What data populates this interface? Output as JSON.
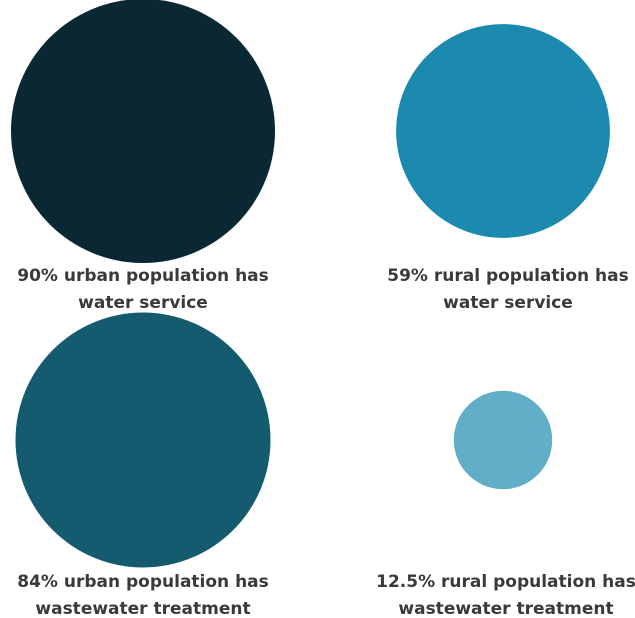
{
  "chart_data": {
    "type": "bubble",
    "title": "",
    "items": [
      {
        "value": 90,
        "line1": "90% urban population has",
        "line2": "water service",
        "color": "#0a2833"
      },
      {
        "value": 59,
        "line1": "59% rural population has",
        "line2": "water service",
        "color": "#1c8aae"
      },
      {
        "value": 84,
        "line1": "84% urban population has",
        "line2": "wastewater treatment",
        "color": "#155b70"
      },
      {
        "value": 12.5,
        "line1": "12.5% rural population has",
        "line2": "wastewater treatment",
        "color": "#62aec8"
      }
    ]
  }
}
